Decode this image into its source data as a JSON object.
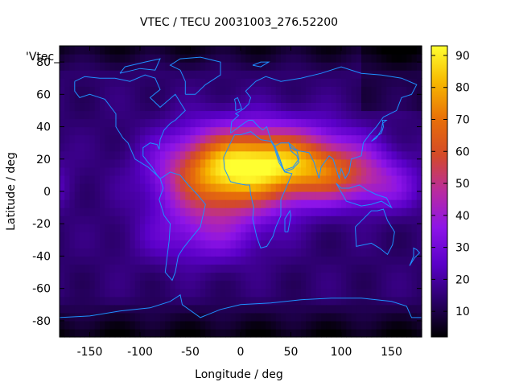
{
  "chart_data": {
    "type": "heatmap",
    "title": "VTEC / TECU 20031003_276.52200",
    "xlabel": "Longitude / deg",
    "ylabel": "Latitude / deg",
    "legend_key": "'Vtec_",
    "xlim": [
      -180,
      180
    ],
    "ylim": [
      -90,
      90
    ],
    "xticks": [
      -150,
      -100,
      -50,
      0,
      50,
      100,
      150
    ],
    "yticks": [
      -80,
      -60,
      -40,
      -20,
      0,
      20,
      40,
      60,
      80
    ],
    "xtick_labels": [
      "-150",
      "-100",
      "-50",
      "0",
      "50",
      "100",
      "150"
    ],
    "ytick_labels": [
      "-80",
      "-60",
      "-40",
      "-20",
      "0",
      "20",
      "40",
      "60",
      "80"
    ],
    "colorbar": {
      "min": 2,
      "max": 93,
      "ticks": [
        10,
        20,
        30,
        40,
        50,
        60,
        70,
        80,
        90
      ],
      "tick_labels": [
        "10",
        "20",
        "30",
        "40",
        "50",
        "60",
        "70",
        "80",
        "90"
      ],
      "palette": [
        "#000000",
        "#2a0068",
        "#5a00c8",
        "#8d14e8",
        "#b92ba0",
        "#d44a28",
        "#e87008",
        "#f7b800",
        "#ffff30"
      ]
    },
    "grid_resolution_deg": [
      5,
      5
    ],
    "field_model": {
      "background_vtec": 14,
      "peaks": [
        {
          "lon": 30,
          "lat": 18,
          "amplitude": 62,
          "sigma_lon": 55,
          "sigma_lat": 16
        },
        {
          "lon": -25,
          "lat": 5,
          "amplitude": 40,
          "sigma_lon": 40,
          "sigma_lat": 20
        },
        {
          "lon": 100,
          "lat": 10,
          "amplitude": 25,
          "sigma_lon": 40,
          "sigma_lat": 12
        },
        {
          "lon": 150,
          "lat": 0,
          "amplitude": 10,
          "sigma_lon": 25,
          "sigma_lat": 10
        },
        {
          "lon": -40,
          "lat": -30,
          "amplitude": 12,
          "sigma_lon": 45,
          "sigma_lat": 12
        }
      ],
      "dark_polar_lat_north": 72,
      "dark_polar_lat_south": -65
    },
    "coastline_color": "#1e90ff"
  }
}
